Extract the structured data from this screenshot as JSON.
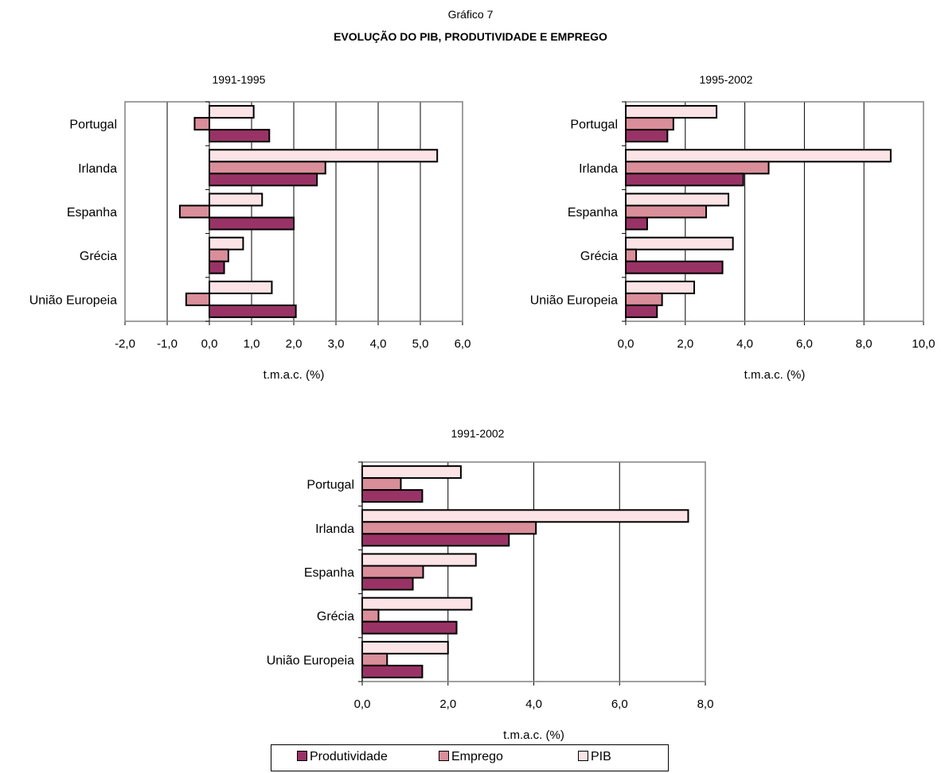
{
  "figure": {
    "label": "Gráfico 7",
    "title": "EVOLUÇÃO DO PIB, PRODUTIVIDADE E EMPREGO"
  },
  "colors": {
    "Produtividade": "#993366",
    "Emprego": "#d98e9a",
    "PIB": "#fbe3e6"
  },
  "legend": [
    "Produtividade",
    "Emprego",
    "PIB"
  ],
  "chart_data": [
    {
      "type": "bar",
      "orientation": "horizontal",
      "title": "1991-1995",
      "xlabel": "t.m.a.c. (%)",
      "ylabel": "",
      "categories": [
        "Portugal",
        "Irlanda",
        "Espanha",
        "Grécia",
        "União Europeia"
      ],
      "series": [
        {
          "name": "PIB",
          "values": [
            1.05,
            5.4,
            1.25,
            0.8,
            1.48
          ]
        },
        {
          "name": "Emprego",
          "values": [
            -0.35,
            2.75,
            -0.7,
            0.45,
            -0.55
          ]
        },
        {
          "name": "Produtividade",
          "values": [
            1.42,
            2.55,
            2.0,
            0.35,
            2.05
          ]
        }
      ],
      "xlim": [
        -2,
        6
      ],
      "xticks": [
        "-2,0",
        "-1,0",
        "0,0",
        "1,0",
        "2,0",
        "3,0",
        "4,0",
        "5,0",
        "6,0"
      ],
      "grid": true,
      "legend_position": "bottom"
    },
    {
      "type": "bar",
      "orientation": "horizontal",
      "title": "1995-2002",
      "xlabel": "t.m.a.c. (%)",
      "ylabel": "",
      "categories": [
        "Portugal",
        "Irlanda",
        "Espanha",
        "Grécia",
        "União Europeia"
      ],
      "series": [
        {
          "name": "PIB",
          "values": [
            3.05,
            8.9,
            3.45,
            3.6,
            2.3
          ]
        },
        {
          "name": "Emprego",
          "values": [
            1.6,
            4.8,
            2.7,
            0.35,
            1.22
          ]
        },
        {
          "name": "Produtividade",
          "values": [
            1.4,
            3.95,
            0.72,
            3.25,
            1.05
          ]
        }
      ],
      "xlim": [
        0,
        10
      ],
      "xticks": [
        "0,0",
        "2,0",
        "4,0",
        "6,0",
        "8,0",
        "10,0"
      ],
      "grid": true,
      "legend_position": "bottom"
    },
    {
      "type": "bar",
      "orientation": "horizontal",
      "title": "1991-2002",
      "xlabel": "t.m.a.c. (%)",
      "ylabel": "",
      "categories": [
        "Portugal",
        "Irlanda",
        "Espanha",
        "Grécia",
        "União Europeia"
      ],
      "series": [
        {
          "name": "PIB",
          "values": [
            2.3,
            7.6,
            2.65,
            2.55,
            2.0
          ]
        },
        {
          "name": "Emprego",
          "values": [
            0.9,
            4.05,
            1.42,
            0.38,
            0.58
          ]
        },
        {
          "name": "Produtividade",
          "values": [
            1.4,
            3.42,
            1.18,
            2.2,
            1.4
          ]
        }
      ],
      "xlim": [
        0,
        8
      ],
      "xticks": [
        "0,0",
        "2,0",
        "4,0",
        "6,0",
        "8,0"
      ],
      "grid": true,
      "legend_position": "bottom"
    }
  ]
}
